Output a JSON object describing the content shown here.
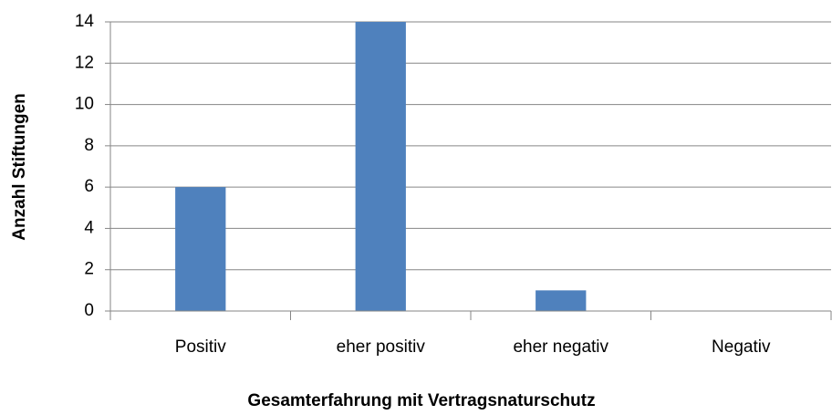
{
  "chart_data": {
    "type": "bar",
    "x_label": "Gesamterfahrung mit Vertragsnaturschutz",
    "y_label": "Anzahl Stiftungen",
    "categories": [
      "Positiv",
      "eher positiv",
      "eher negativ",
      "Negativ"
    ],
    "values": [
      6,
      14,
      1,
      0
    ],
    "color": "#4f81bd",
    "ylim": [
      0,
      14
    ],
    "yticks": [
      0,
      2,
      4,
      6,
      8,
      10,
      12,
      14
    ],
    "grid": true
  }
}
